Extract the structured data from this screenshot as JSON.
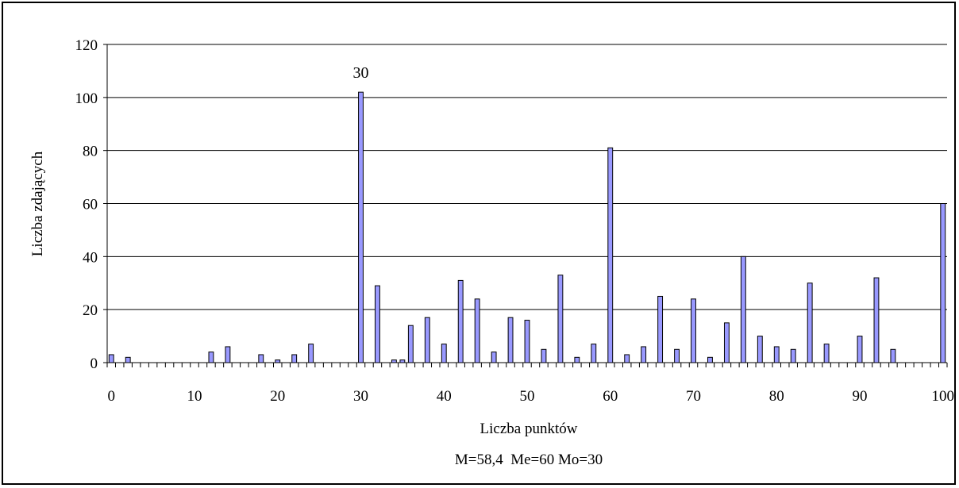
{
  "chart_data": {
    "type": "bar",
    "xlabel": "Liczba punktów",
    "ylabel": "Liczba zdających",
    "stats_label": "M=58,4  Me=60 Mo=30",
    "annotation": {
      "label": "30",
      "x": 30
    },
    "xlim": [
      0,
      100
    ],
    "ylim": [
      0,
      120
    ],
    "y_ticks": [
      0,
      20,
      40,
      60,
      80,
      100,
      120
    ],
    "x_ticks": [
      0,
      10,
      20,
      30,
      40,
      50,
      60,
      70,
      80,
      90,
      100
    ],
    "grid": "horizontal",
    "colors": {
      "bar_fill": "#9999ff",
      "bar_stroke": "#000000",
      "grid": "#000000"
    },
    "x": [
      0,
      1,
      2,
      3,
      4,
      5,
      6,
      7,
      8,
      9,
      10,
      11,
      12,
      13,
      14,
      15,
      16,
      17,
      18,
      19,
      20,
      21,
      22,
      23,
      24,
      25,
      26,
      27,
      28,
      29,
      30,
      31,
      32,
      33,
      34,
      35,
      36,
      37,
      38,
      39,
      40,
      41,
      42,
      43,
      44,
      45,
      46,
      47,
      48,
      49,
      50,
      51,
      52,
      53,
      54,
      55,
      56,
      57,
      58,
      59,
      60,
      61,
      62,
      63,
      64,
      65,
      66,
      67,
      68,
      69,
      70,
      71,
      72,
      73,
      74,
      75,
      76,
      77,
      78,
      79,
      80,
      81,
      82,
      83,
      84,
      85,
      86,
      87,
      88,
      89,
      90,
      91,
      92,
      93,
      94,
      95,
      96,
      97,
      98,
      99,
      100
    ],
    "values": [
      3,
      0,
      2,
      0,
      0,
      0,
      0,
      0,
      0,
      0,
      0,
      0,
      4,
      0,
      6,
      0,
      0,
      0,
      3,
      0,
      1,
      0,
      3,
      0,
      7,
      0,
      0,
      0,
      0,
      0,
      102,
      0,
      29,
      0,
      1,
      1,
      14,
      0,
      17,
      0,
      7,
      0,
      31,
      0,
      24,
      0,
      4,
      0,
      17,
      0,
      16,
      0,
      5,
      0,
      33,
      0,
      2,
      0,
      7,
      0,
      81,
      0,
      3,
      0,
      6,
      0,
      25,
      0,
      5,
      0,
      24,
      0,
      2,
      0,
      15,
      0,
      40,
      0,
      10,
      0,
      6,
      0,
      5,
      0,
      30,
      0,
      7,
      0,
      0,
      0,
      10,
      0,
      32,
      0,
      5,
      0,
      0,
      0,
      0,
      0,
      60
    ]
  }
}
